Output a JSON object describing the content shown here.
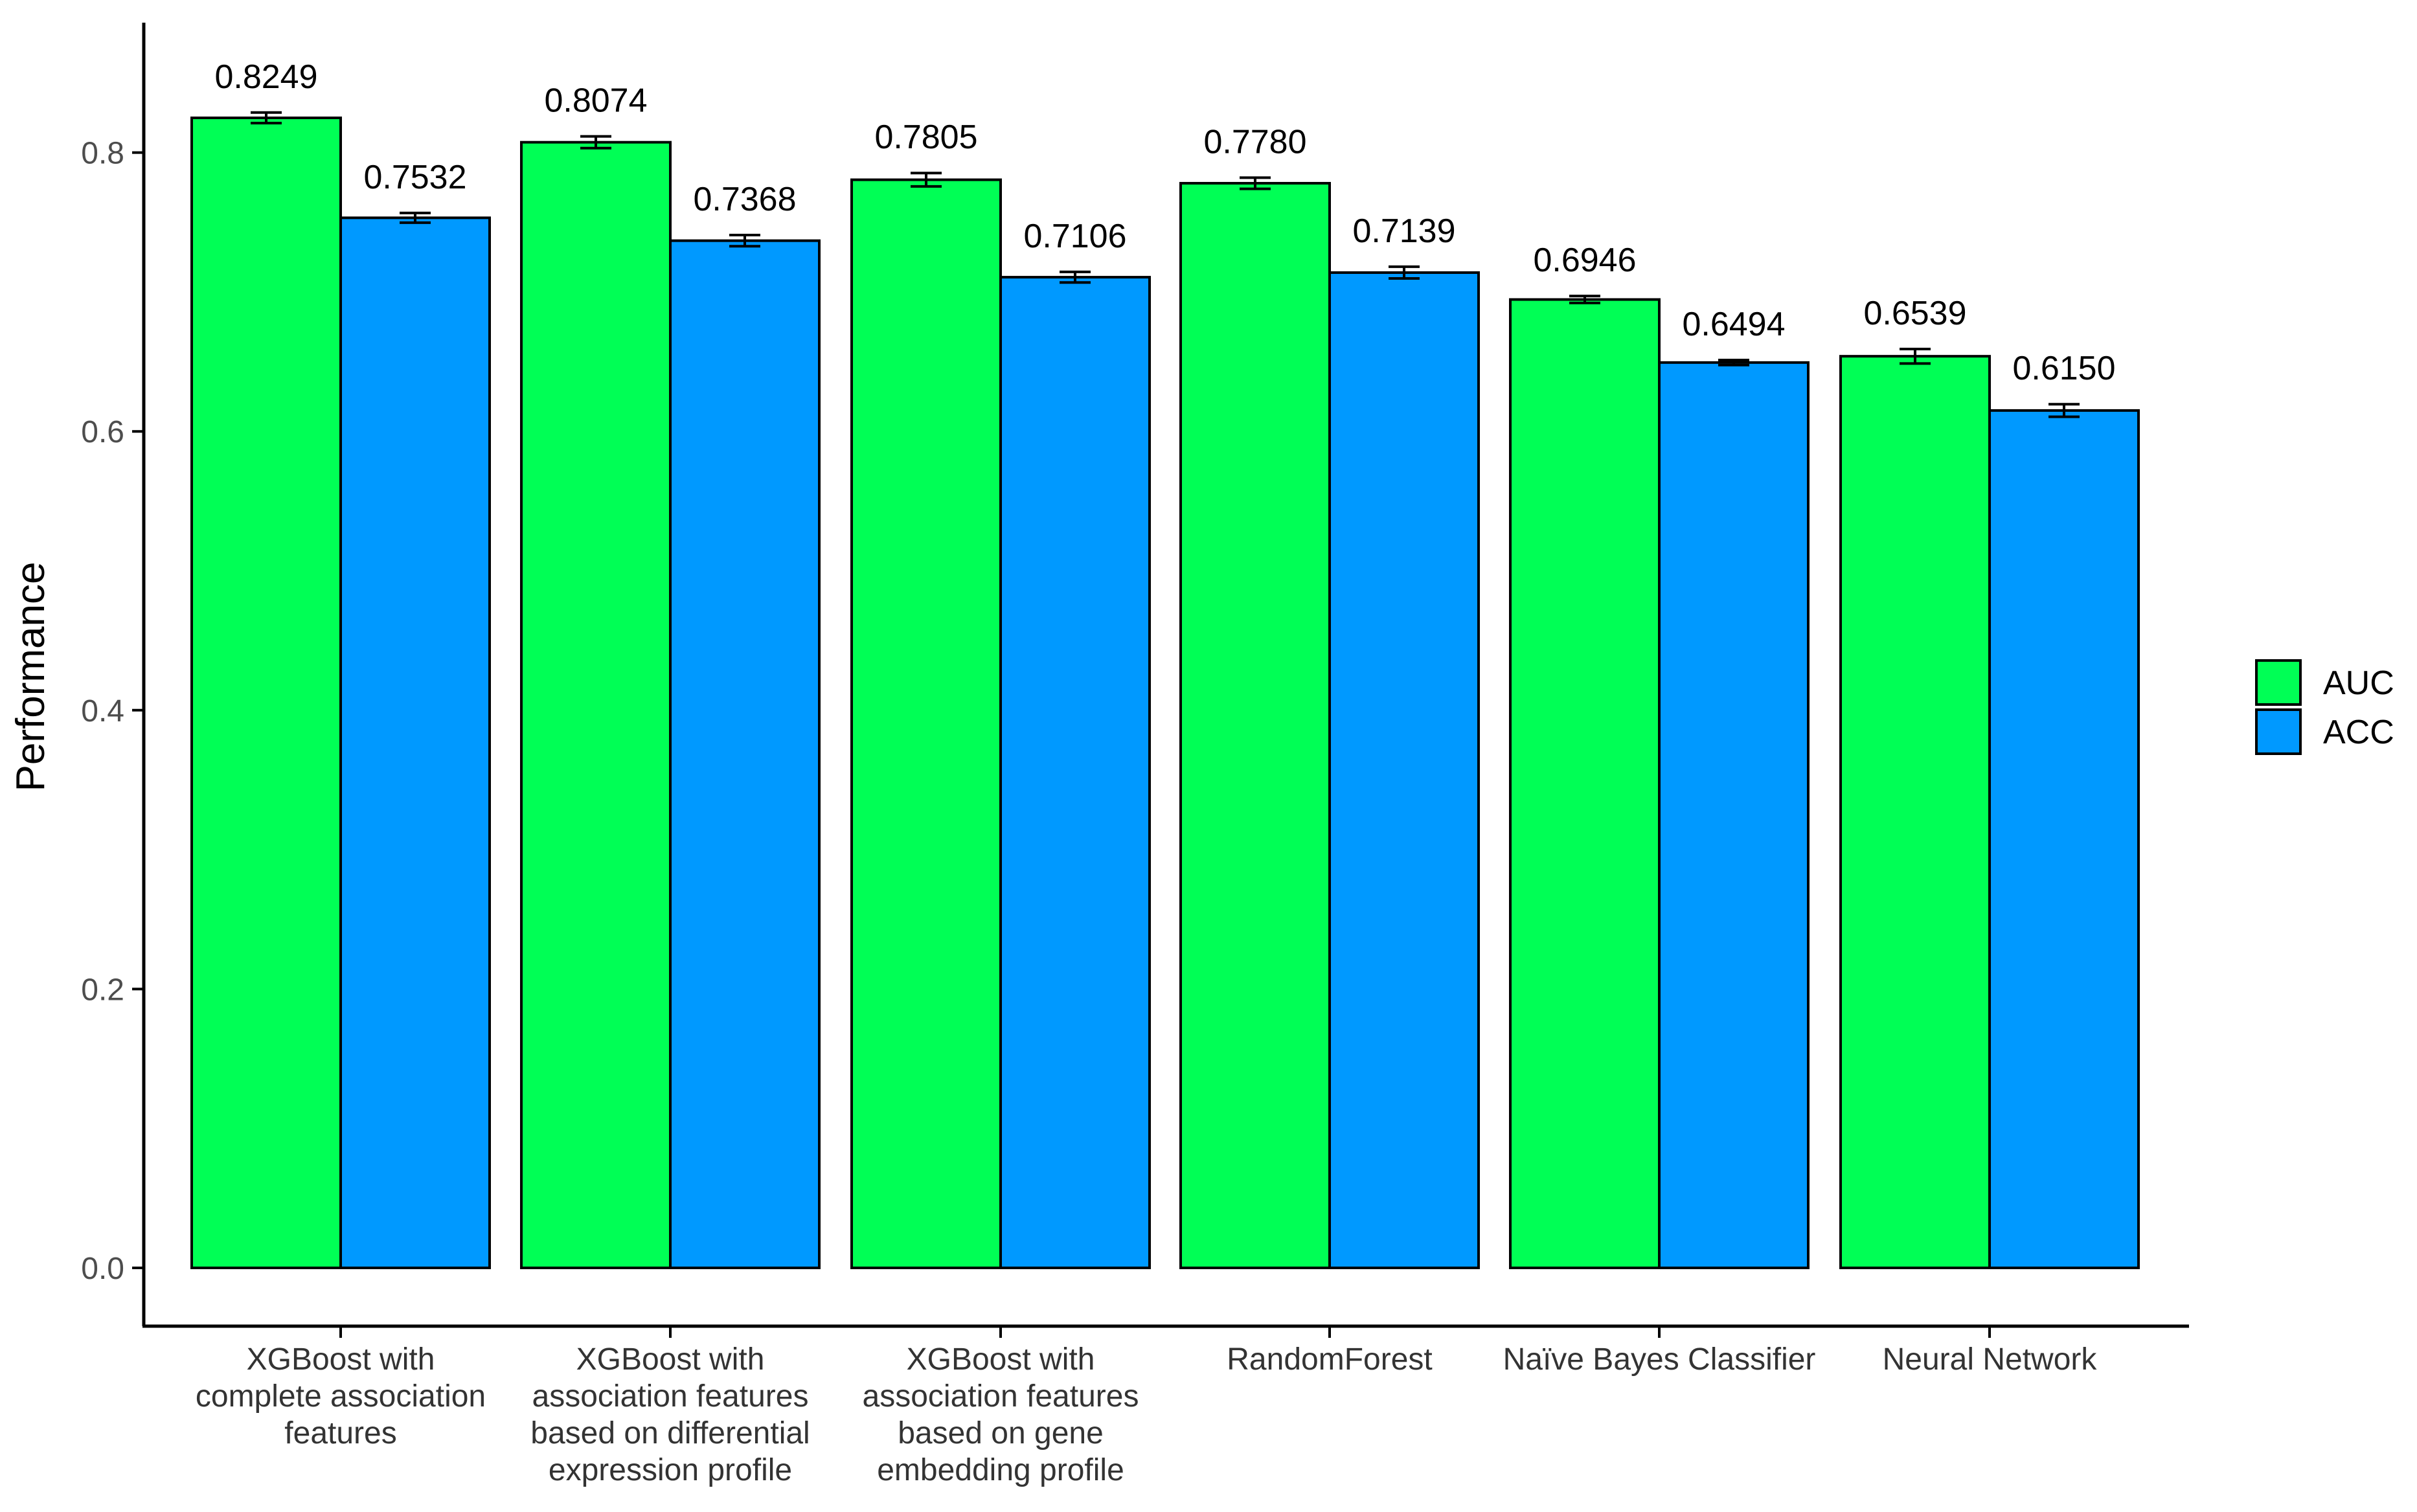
{
  "chart_data": {
    "type": "bar",
    "title": "",
    "xlabel": "",
    "ylabel": "Performance",
    "ylim": [
      0,
      0.88
    ],
    "yticks": [
      0.0,
      0.2,
      0.4,
      0.6,
      0.8
    ],
    "ytick_labels": [
      "0.0",
      "0.2",
      "0.4",
      "0.6",
      "0.8"
    ],
    "grid": false,
    "legend_position": "right",
    "categories": [
      [
        "XGBoost with",
        "complete association",
        "features"
      ],
      [
        "XGBoost with",
        "association features",
        "based on differential",
        "expression profile"
      ],
      [
        "XGBoost with",
        "association features",
        "based on gene",
        "embedding profile"
      ],
      [
        "RandomForest"
      ],
      [
        "Naïve Bayes Classifier"
      ],
      [
        "Neural Network"
      ]
    ],
    "series": [
      {
        "name": "AUC",
        "color": "#00ff55",
        "values": [
          0.8249,
          0.8074,
          0.7805,
          0.778,
          0.6946,
          0.6539
        ],
        "value_labels": [
          "0.8249",
          "0.8074",
          "0.7805",
          "0.7780",
          "0.6946",
          "0.6539"
        ],
        "errors": [
          0.0038,
          0.0042,
          0.0048,
          0.004,
          0.0025,
          0.0052
        ]
      },
      {
        "name": "ACC",
        "color": "#0099ff",
        "values": [
          0.7532,
          0.7368,
          0.7106,
          0.7139,
          0.6494,
          0.615
        ],
        "value_labels": [
          "0.7532",
          "0.7368",
          "0.7106",
          "0.7139",
          "0.6494",
          "0.6150"
        ],
        "errors": [
          0.0035,
          0.004,
          0.0038,
          0.0042,
          0.0018,
          0.0045
        ]
      }
    ]
  }
}
